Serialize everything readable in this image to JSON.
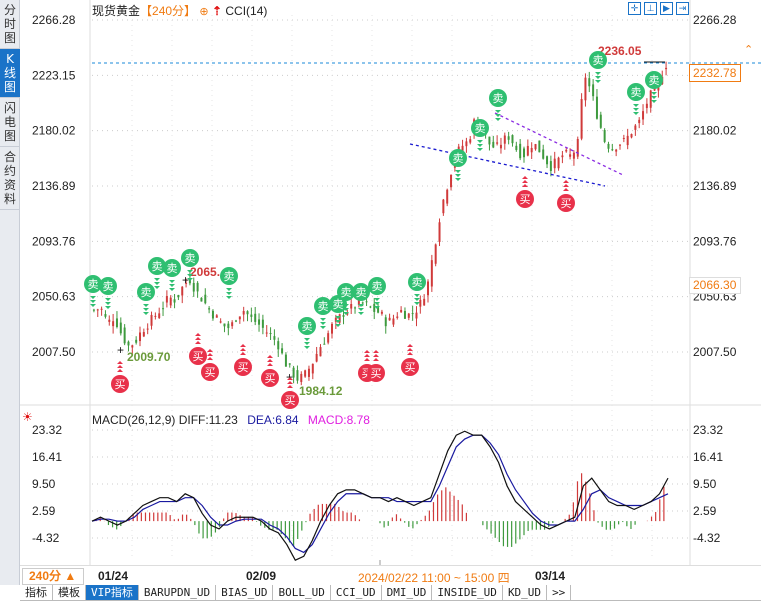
{
  "left_sidebar": {
    "items": [
      {
        "label": "分时图",
        "active": false
      },
      {
        "label": "K线图",
        "active": true
      },
      {
        "label": "闪电图",
        "active": false
      },
      {
        "label": "合约资料",
        "active": false
      }
    ]
  },
  "header": {
    "instrument": "现货黄金",
    "period": "【240分】",
    "add_icon": "⊕",
    "indicator": "CCI(14)",
    "tools": [
      "crosshair",
      "zoom-fit",
      "zoom-in-range",
      "scroll-to-end"
    ]
  },
  "price_axis": {
    "labels": [
      "2266.28",
      "2223.15",
      "2180.02",
      "2136.89",
      "2093.76",
      "2050.63",
      "2007.50"
    ],
    "current_price": "2232.78",
    "last_price_label": "2066.30"
  },
  "annotations": {
    "high_1": "2065.",
    "low_1": "2009.70",
    "low_2": "1984.12",
    "high_2": "2236.05"
  },
  "signals": {
    "sell": "卖",
    "buy": "买"
  },
  "macd_panel": {
    "title": "MACD(26,12,9)",
    "diff": "DIFF:11.23",
    "dea": "DEA:6.84",
    "macd": "MACD:8.78",
    "axis_labels": [
      "23.32",
      "16.41",
      "9.50",
      "2.59",
      "-4.32"
    ]
  },
  "time_axis": {
    "period_selector": "240分 ▲",
    "labels": [
      "01/24",
      "02/09",
      "03/14"
    ],
    "cursor_time": "2024/02/22 11:00 ~ 15:00 四"
  },
  "bottom_tabs": [
    {
      "label": "指标",
      "active": false
    },
    {
      "label": "模板",
      "active": false
    },
    {
      "label": "VIP指标",
      "active": true
    },
    {
      "label": "BARUPDN_UD",
      "active": false
    },
    {
      "label": "BIAS_UD",
      "active": false
    },
    {
      "label": "BOLL_UD",
      "active": false
    },
    {
      "label": "CCI_UD",
      "active": false
    },
    {
      "label": "DMI_UD",
      "active": false
    },
    {
      "label": "INSIDE_UD",
      "active": false
    },
    {
      "label": "KD_UD",
      "active": false
    },
    {
      "label": ">>",
      "active": false
    }
  ],
  "colors": {
    "up": "#d03a3a",
    "down": "#3e9a3e",
    "sell_badge": "#2fbf71",
    "buy_badge": "#e8314a",
    "accent": "#f07b12",
    "dea_line": "#1a1aa0"
  },
  "chart_data": [
    {
      "type": "candlestick",
      "title": "现货黄金 240分 K线",
      "ylim": [
        1984.12,
        2266.28
      ],
      "y_ticks": [
        2266.28,
        2223.15,
        2180.02,
        2136.89,
        2093.76,
        2050.63,
        2007.5
      ],
      "x_ticks": [
        "01/24",
        "02/09",
        "03/14"
      ],
      "annotated_points": [
        {
          "label": "high",
          "value": 2065.0
        },
        {
          "label": "low",
          "value": 2009.7
        },
        {
          "label": "low",
          "value": 1984.12
        },
        {
          "label": "high",
          "value": 2236.05
        }
      ],
      "current_price": 2232.78,
      "path": [
        2040,
        2042,
        2030,
        2035,
        2022,
        2012,
        2015,
        2024,
        2030,
        2036,
        2042,
        2050,
        2048,
        2058,
        2065,
        2055,
        2048,
        2040,
        2034,
        2028,
        2026,
        2036,
        2040,
        2034,
        2030,
        2025,
        2020,
        2014,
        2000,
        1992,
        1986,
        1990,
        1998,
        2010,
        2018,
        2028,
        2034,
        2040,
        2042,
        2046,
        2044,
        2040,
        2038,
        2030,
        2034,
        2040,
        2036,
        2038,
        2046,
        2060,
        2090,
        2120,
        2140,
        2160,
        2168,
        2172,
        2190,
        2180,
        2170,
        2166,
        2172,
        2176,
        2166,
        2160,
        2170,
        2168,
        2160,
        2152,
        2156,
        2162,
        2160,
        2168,
        2225,
        2210,
        2190,
        2172,
        2166,
        2170,
        2172,
        2180,
        2186,
        2200,
        2210,
        2220,
        2232
      ]
    },
    {
      "type": "line+bar",
      "title": "MACD(26,12,9)",
      "ylim": [
        -11,
        24
      ],
      "y_ticks": [
        23.32,
        16.41,
        9.5,
        2.59,
        -4.32
      ],
      "series": [
        {
          "name": "DIFF",
          "last": 11.23
        },
        {
          "name": "DEA",
          "last": 6.84
        },
        {
          "name": "MACD",
          "last": 8.78
        }
      ]
    }
  ]
}
